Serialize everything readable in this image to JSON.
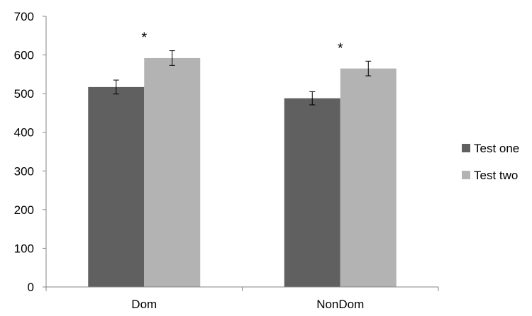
{
  "chart_data": {
    "type": "bar",
    "categories": [
      "Dom",
      "NonDom"
    ],
    "series": [
      {
        "name": "Test one",
        "color": "#606060",
        "values": [
          517,
          488
        ],
        "errors": [
          18,
          17
        ]
      },
      {
        "name": "Test two",
        "color": "#b3b3b3",
        "values": [
          592,
          565
        ],
        "errors": [
          19,
          19
        ]
      }
    ],
    "ylim": [
      0,
      700
    ],
    "yticks": [
      "0",
      "100",
      "200",
      "300",
      "400",
      "500",
      "600",
      "700"
    ],
    "annotations": [
      "*",
      "*"
    ],
    "grid": false,
    "legend_position": "right",
    "title": "",
    "xlabel": "",
    "ylabel": ""
  }
}
